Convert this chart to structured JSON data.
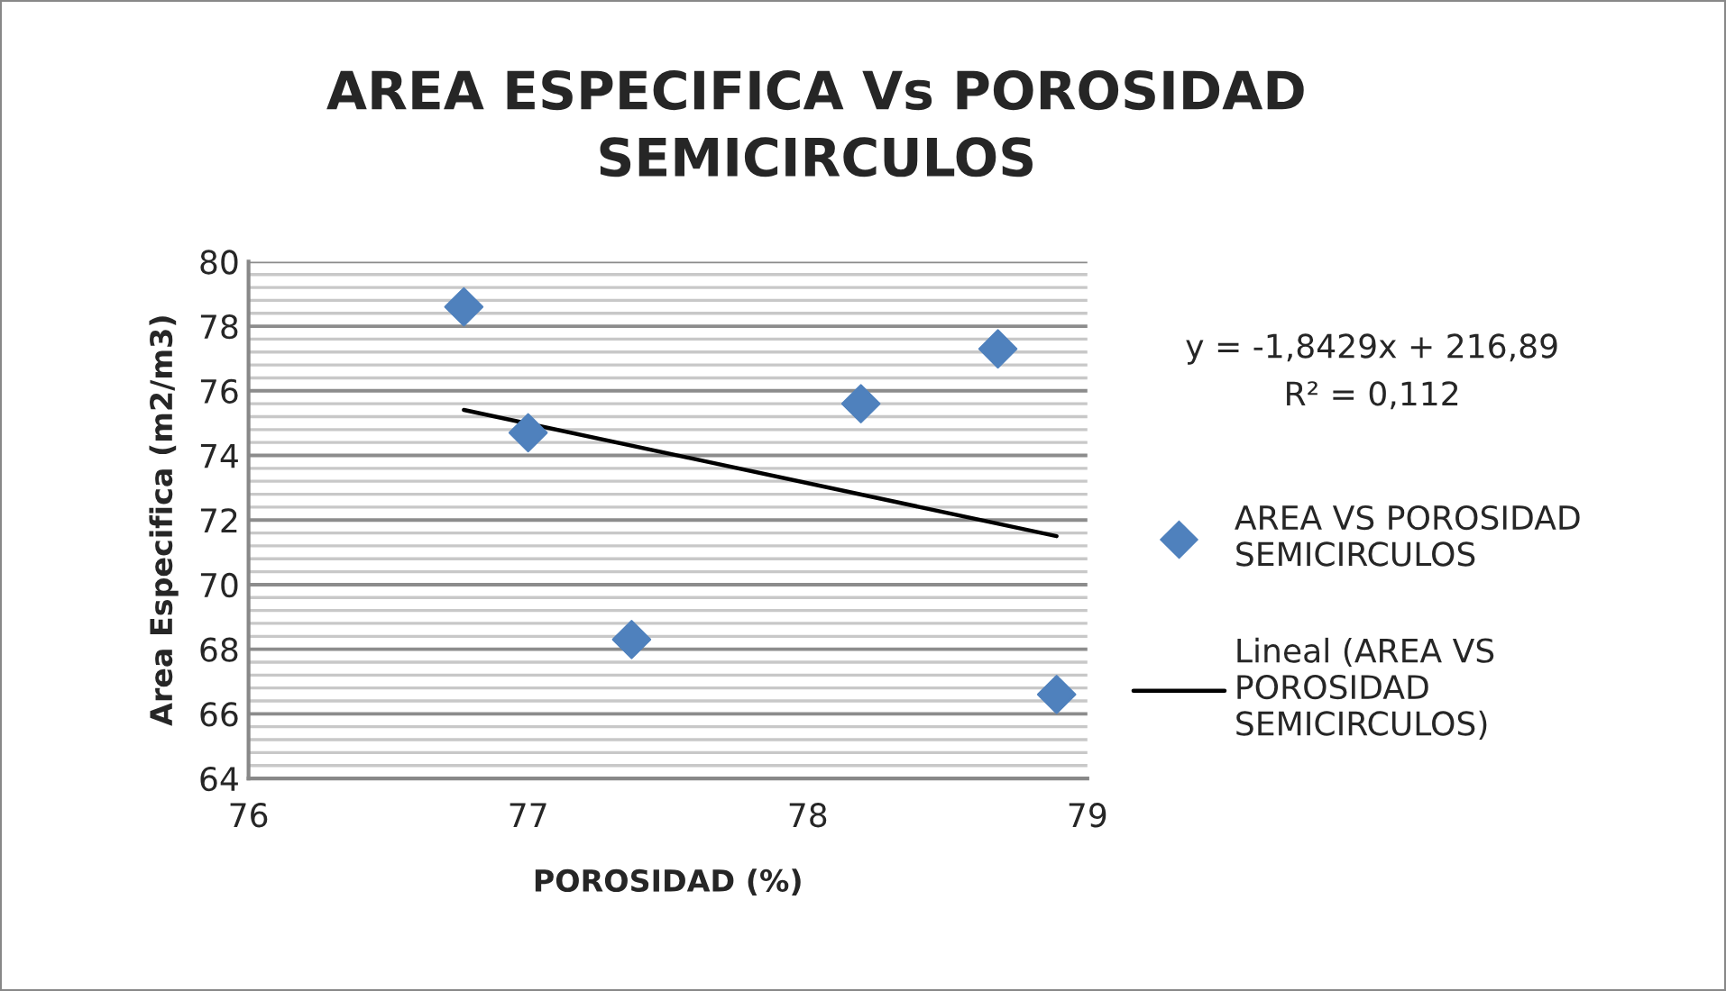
{
  "chart_data": {
    "type": "scatter",
    "title": "AREA ESPECIFICA Vs POROSIDAD\nSEMICIRCULOS",
    "xlabel": "POROSIDAD (%)",
    "ylabel": "Area Especifica (m2/m3)",
    "annotations": [
      "y = -1,8429x + 216,89",
      "R² = 0,112"
    ],
    "series": [
      {
        "name": "AREA VS POROSIDAD\nSEMICIRCULOS",
        "color": "#4f81bd",
        "marker": "diamond",
        "x": [
          76.77,
          77.0,
          77.37,
          78.19,
          78.68,
          78.89
        ],
        "values": [
          78.6,
          74.7,
          68.3,
          75.6,
          77.3,
          66.6
        ]
      },
      {
        "name": "Lineal (AREA VS\nPOROSIDAD\nSEMICIRCULOS)",
        "type": "line",
        "color": "#000000",
        "marker": "none",
        "line_style": "solid",
        "x": [
          76.77,
          78.89
        ],
        "values": [
          75.41,
          71.5
        ]
      }
    ],
    "xlim": [
      76,
      79
    ],
    "xticks": [
      76,
      77,
      78,
      79
    ],
    "ylim": [
      64,
      80
    ],
    "yticks": [
      64,
      66,
      68,
      70,
      72,
      74,
      76,
      78,
      80
    ],
    "grid": "y",
    "legend": "right"
  }
}
